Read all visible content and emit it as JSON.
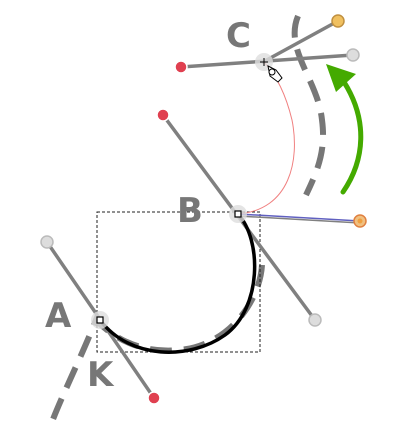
{
  "labels": {
    "a": "A",
    "b": "B",
    "c": "C",
    "k": "K"
  },
  "colors": {
    "handle_line": "#808080",
    "dashed_path": "#777777",
    "curve": "#000000",
    "red_handle": "#e04050",
    "orange_handle": "#f0a040",
    "grey_handle": "#dddddd",
    "arrow": "#44aa00",
    "thin_curve": "#f08080",
    "blue_handle": "#6060c0"
  },
  "icons": {
    "cursor": "node-edit-cursor-icon"
  }
}
